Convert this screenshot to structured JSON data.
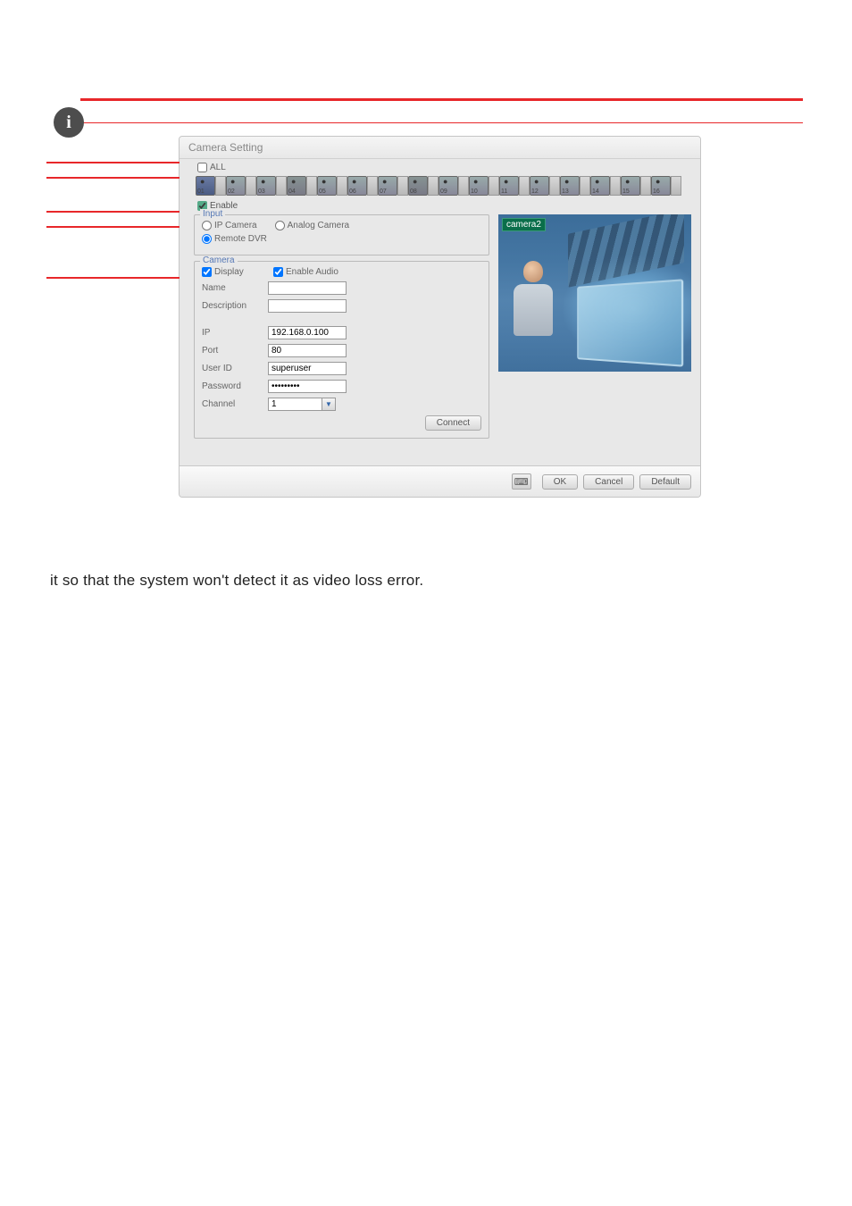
{
  "dialog": {
    "title": "Camera Setting",
    "all_label": "ALL",
    "all_checked": false,
    "camera_chips": [
      "01",
      "02",
      "03",
      "04",
      "05",
      "06",
      "07",
      "08",
      "09",
      "10",
      "11",
      "12",
      "13",
      "14",
      "15",
      "16"
    ],
    "selected_chip_index": 0,
    "disabled_chips": [
      3,
      7
    ],
    "enable_label": "Enable",
    "enable_checked": true
  },
  "input_group": {
    "legend": "Input",
    "ip_camera_label": "IP Camera",
    "ip_camera_selected": false,
    "analog_label": "Analog Camera",
    "analog_selected": false,
    "remote_dvr_label": "Remote DVR",
    "remote_dvr_selected": true
  },
  "camera_group": {
    "legend": "Camera",
    "display_label": "Display",
    "display_checked": true,
    "enable_audio_label": "Enable Audio",
    "enable_audio_checked": true,
    "name_label": "Name",
    "name_value": "",
    "desc_label": "Description",
    "desc_value": "",
    "ip_label": "IP",
    "ip_value": "192.168.0.100",
    "port_label": "Port",
    "port_value": "80",
    "user_label": "User ID",
    "user_value": "superuser",
    "pass_label": "Password",
    "pass_value": "*********",
    "channel_label": "Channel",
    "channel_value": "1",
    "connect_label": "Connect"
  },
  "preview": {
    "label": "camera2"
  },
  "footer": {
    "ok": "OK",
    "cancel": "Cancel",
    "default": "Default"
  },
  "body_text": "it so that the system won't detect it as video loss error.",
  "colors": {
    "accent_red": "#e8272a",
    "legend_blue": "#5678b5",
    "preview_label_bg": "#0a6e4a"
  }
}
